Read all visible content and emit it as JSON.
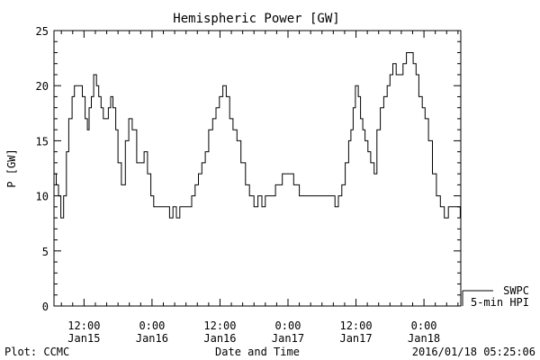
{
  "chart_data": {
    "type": "line",
    "title": "Hemispheric Power [GW]",
    "ylabel": "P [GW]",
    "xlabel": "Date and Time",
    "ylim": [
      0,
      25
    ],
    "yticks": [
      0,
      5,
      10,
      15,
      20,
      25
    ],
    "xlim_hours": [
      -5.3,
      66.5
    ],
    "xticks": [
      {
        "hour": 0,
        "time": "12:00",
        "date": "Jan15"
      },
      {
        "hour": 12,
        "time": "0:00",
        "date": "Jan16"
      },
      {
        "hour": 24,
        "time": "12:00",
        "date": "Jan16"
      },
      {
        "hour": 36,
        "time": "0:00",
        "date": "Jan17"
      },
      {
        "hour": 48,
        "time": "12:00",
        "date": "Jan17"
      },
      {
        "hour": 60,
        "time": "0:00",
        "date": "Jan18"
      }
    ],
    "legend": {
      "line1": "SWPC",
      "line2": "5-min HPI",
      "placement": "bottom-right outside"
    },
    "footer_left": "Plot: CCMC",
    "footer_right": "2016/01/18 05:25:06",
    "series": [
      {
        "name": "SWPC 5-min HPI",
        "x": [
          -5.3,
          -4.9,
          -4.5,
          -4.1,
          -3.6,
          -3.1,
          -2.7,
          -2.1,
          -1.7,
          -0.9,
          -0.3,
          0.2,
          0.6,
          0.9,
          1.3,
          1.7,
          2.2,
          2.6,
          3.0,
          3.4,
          3.8,
          4.3,
          4.7,
          5.1,
          5.6,
          6.0,
          6.6,
          7.3,
          7.9,
          8.5,
          9.3,
          10.0,
          10.6,
          11.2,
          11.8,
          12.3,
          12.8,
          13.3,
          13.8,
          14.4,
          15.1,
          15.7,
          16.3,
          16.9,
          17.6,
          18.2,
          19.0,
          19.6,
          20.2,
          20.8,
          21.4,
          22.0,
          22.7,
          23.3,
          23.9,
          24.5,
          25.1,
          25.7,
          26.3,
          27.0,
          27.7,
          28.5,
          29.2,
          30.0,
          30.7,
          31.4,
          32.0,
          32.7,
          33.2,
          33.8,
          34.3,
          35.0,
          36.0,
          37.0,
          38.0,
          39.0,
          40.0,
          41.0,
          42.0,
          42.6,
          43.2,
          43.8,
          44.3,
          44.9,
          45.5,
          46.1,
          46.7,
          47.1,
          47.5,
          47.9,
          48.4,
          48.8,
          49.2,
          49.6,
          50.1,
          50.6,
          51.2,
          51.7,
          52.3,
          52.9,
          53.5,
          54.0,
          54.5,
          55.1,
          55.7,
          56.3,
          56.9,
          57.5,
          58.1,
          58.6,
          59.1,
          59.7,
          60.2,
          60.8,
          61.5,
          62.2,
          62.9,
          63.6,
          64.3,
          65.0,
          65.7,
          66.4
        ],
        "y": [
          12,
          11,
          10,
          8,
          10,
          14,
          17,
          19,
          20,
          20,
          19,
          17,
          16,
          18,
          19,
          21,
          20,
          19,
          18,
          17,
          17,
          18,
          19,
          18,
          16,
          13,
          11,
          15,
          17,
          16,
          13,
          13,
          14,
          12,
          10,
          9,
          9,
          9,
          9,
          9,
          8,
          9,
          8,
          9,
          9,
          9,
          10,
          11,
          12,
          13,
          14,
          16,
          17,
          18,
          19,
          20,
          19,
          17,
          16,
          15,
          13,
          11,
          10,
          9,
          10,
          9,
          10,
          10,
          10,
          11,
          11,
          12,
          12,
          11,
          10,
          10,
          10,
          10,
          10,
          10,
          10,
          10,
          9,
          10,
          11,
          13,
          15,
          16,
          18,
          20,
          19,
          17,
          16,
          15,
          14,
          13,
          12,
          16,
          18,
          19,
          20,
          21,
          22,
          21,
          21,
          22,
          23,
          23,
          22,
          21,
          19,
          18,
          17,
          15,
          12,
          10,
          9,
          8,
          9,
          9,
          9,
          8
        ]
      }
    ]
  }
}
